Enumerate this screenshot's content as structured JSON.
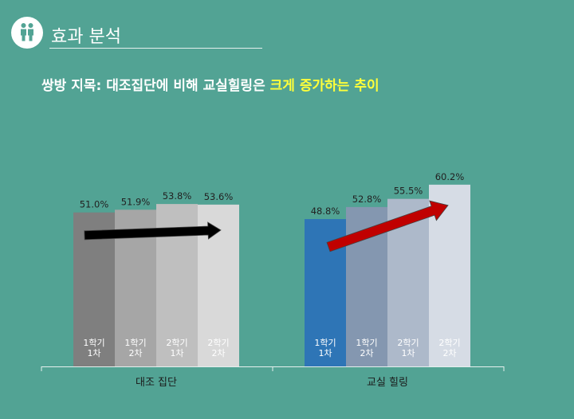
{
  "header": {
    "section_title": "효과 분석"
  },
  "subtitle": {
    "prefix": "쌍방 지목: 대조집단에 비해 교실힐링은 ",
    "highlight": "크게 증가하는 추이"
  },
  "colors": {
    "background": "#52a394",
    "highlight": "#ffff3a"
  },
  "chart_data": {
    "type": "bar",
    "categories": [
      "대조 집단",
      "교실 힐링"
    ],
    "bar_labels": [
      [
        "1학기",
        "1차"
      ],
      [
        "1학기",
        "2차"
      ],
      [
        "2학기",
        "1차"
      ],
      [
        "2학기",
        "2차"
      ]
    ],
    "series": [
      {
        "values": [
          51.0,
          48.8
        ],
        "value_labels": [
          "51.0%",
          "48.8%"
        ],
        "colors": [
          "#7f7f7f",
          "#2e75b6"
        ]
      },
      {
        "values": [
          51.9,
          52.8
        ],
        "value_labels": [
          "51.9%",
          "52.8%"
        ],
        "colors": [
          "#a6a6a6",
          "#8497b0"
        ]
      },
      {
        "values": [
          53.8,
          55.5
        ],
        "value_labels": [
          "53.8%",
          "55.5%"
        ],
        "colors": [
          "#bfbfbf",
          "#adb9ca"
        ]
      },
      {
        "values": [
          53.6,
          60.2
        ],
        "value_labels": [
          "53.6%",
          "60.2%"
        ],
        "colors": [
          "#d9d9d9",
          "#d6dce5"
        ]
      }
    ],
    "trend_arrow_colors": [
      "#000000",
      "#c00000"
    ]
  }
}
